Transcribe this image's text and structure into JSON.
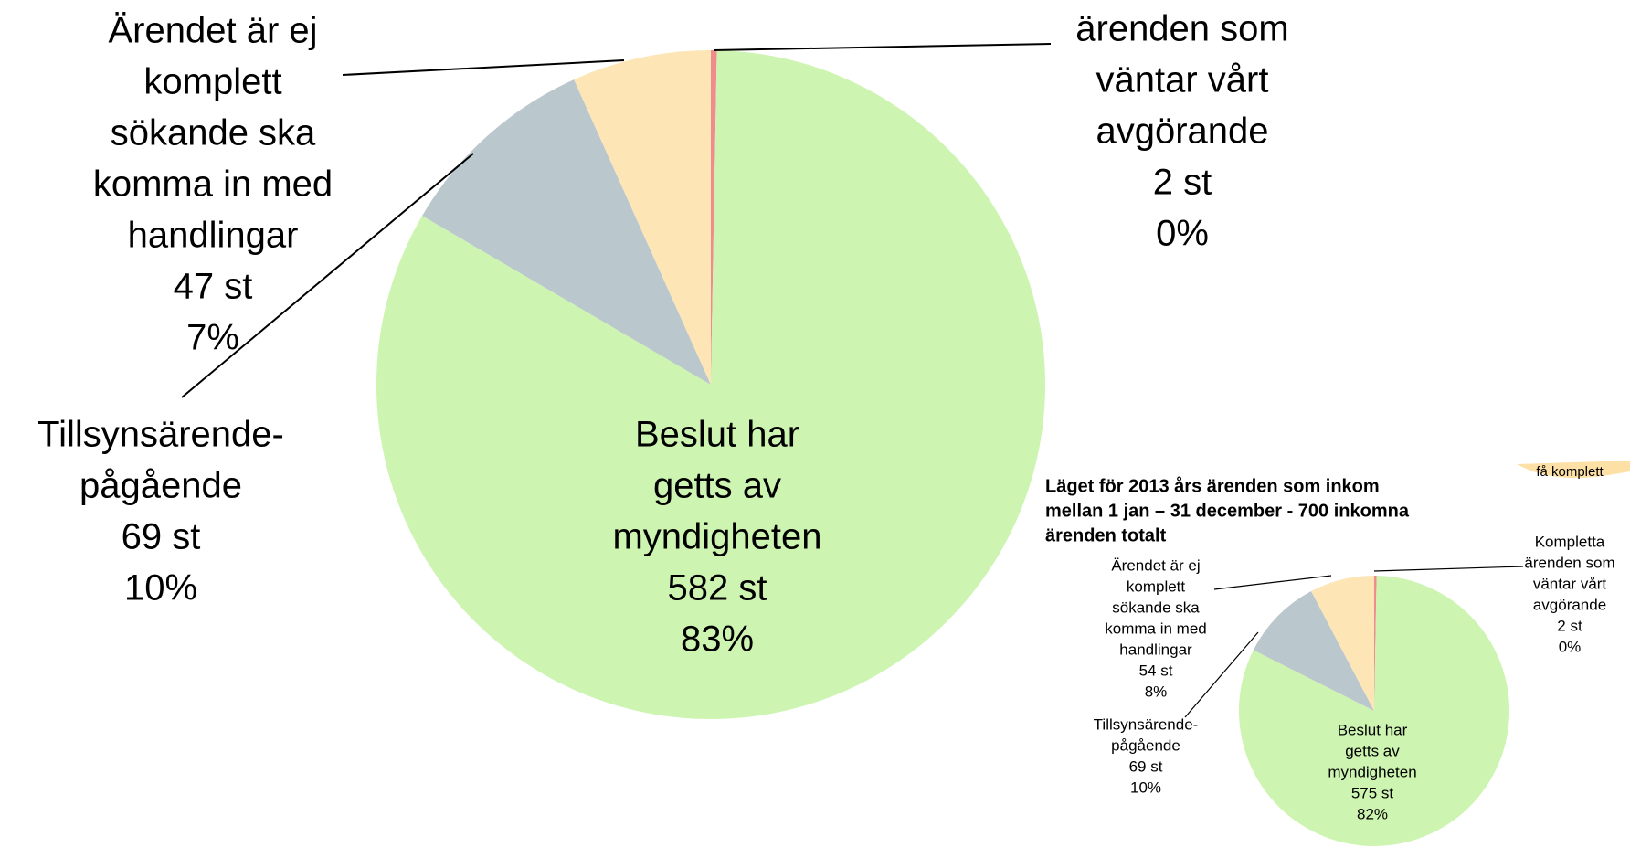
{
  "chart_data": [
    {
      "type": "pie",
      "categories": [
        [
          "ärenden som",
          "väntar vårt",
          "avgörande"
        ],
        [
          "Beslut har",
          "getts av",
          "myndigheten"
        ],
        [
          "Tillsynsärende-",
          "pågående"
        ],
        [
          "Ärendet är ej",
          "komplett",
          "sökande ska",
          "komma in med",
          "handlingar"
        ]
      ],
      "values": [
        2,
        582,
        69,
        47
      ],
      "value_labels": [
        "2 st",
        "582 st",
        "69 st",
        "47 st"
      ],
      "percent_labels": [
        "0%",
        "83%",
        "10%",
        "7%"
      ],
      "colors": [
        "#f08c8c",
        "#cdf4b0",
        "#bac7cc",
        "#fde5b6"
      ]
    },
    {
      "type": "pie",
      "title": [
        "Läget för 2013 års ärenden som inkom",
        "mellan 1 jan – 31 december - 700 inkomna",
        "ärenden totalt"
      ],
      "categories": [
        [
          "Kompletta",
          "ärenden som",
          "väntar vårt",
          "avgörande"
        ],
        [
          "Beslut har",
          "getts av",
          "myndigheten"
        ],
        [
          "Tillsynsärende-",
          "pågående"
        ],
        [
          "Ärendet är ej",
          "komplett",
          "sökande ska",
          "komma  in med",
          "handlingar"
        ]
      ],
      "values": [
        2,
        575,
        69,
        54
      ],
      "value_labels": [
        "2 st",
        "575 st",
        "69 st",
        "54 st"
      ],
      "percent_labels": [
        "0%",
        "82%",
        "10%",
        "8%"
      ],
      "colors": [
        "#f08c8c",
        "#cdf4b0",
        "#bac7cc",
        "#fde5b6"
      ],
      "fragment": "få komplett"
    }
  ]
}
